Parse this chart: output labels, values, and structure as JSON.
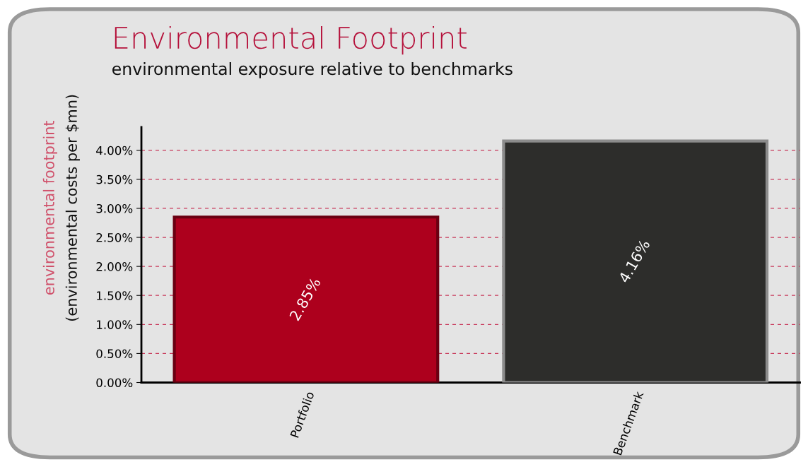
{
  "chart_data": {
    "type": "bar",
    "title": "Environmental Footprint",
    "subtitle": "environmental exposure relative to benchmarks",
    "ylabel": "environmental footprint\n(environmental costs per $mn)",
    "categories": [
      "Portfolio",
      "Benchmark"
    ],
    "values": [
      2.85,
      4.16
    ],
    "colors": [
      "#ad001d",
      "#2d2d2b"
    ],
    "value_labels": [
      "2.85%",
      "4.16%"
    ],
    "ylim": [
      0,
      4.4
    ],
    "yticks": [
      {
        "value": 0,
        "label": "0.00%"
      },
      {
        "value": 0.5,
        "label": "0.50%"
      },
      {
        "value": 1,
        "label": "1.00%"
      },
      {
        "value": 1.5,
        "label": "1.50%"
      },
      {
        "value": 2,
        "label": "2.00%"
      },
      {
        "value": 2.5,
        "label": "2.50%"
      },
      {
        "value": 3,
        "label": "3.00%"
      },
      {
        "value": 3.5,
        "label": "3.50%"
      },
      {
        "value": 4,
        "label": "4.00%"
      }
    ],
    "grid": "y",
    "legend": false
  }
}
